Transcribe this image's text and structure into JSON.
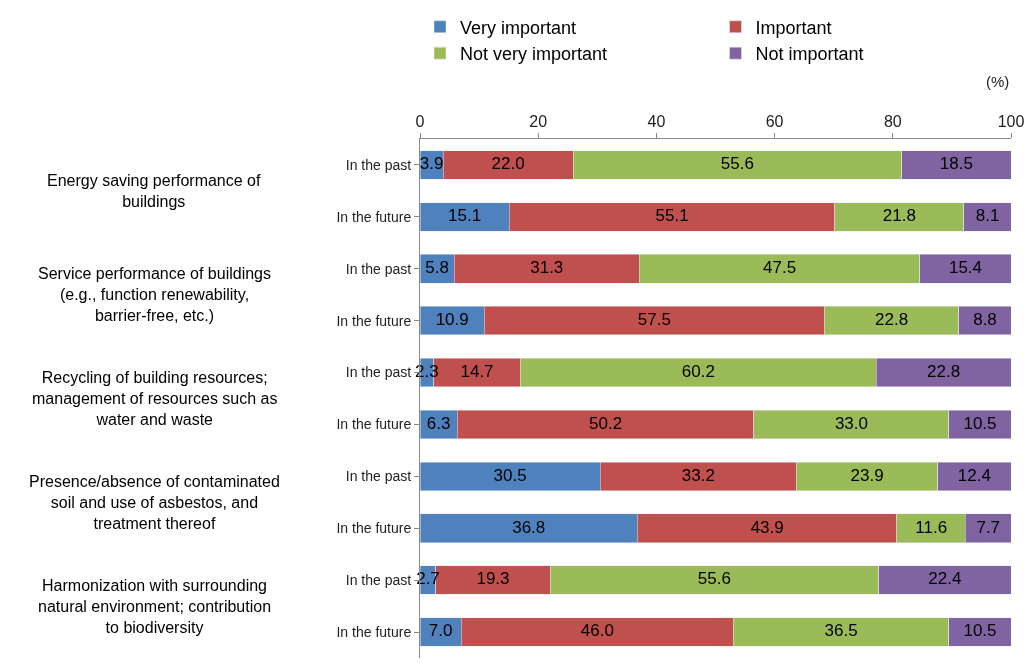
{
  "chart_data": {
    "type": "bar",
    "orientation": "horizontal",
    "stacked": true,
    "xlabel": "(%)",
    "categories": [
      "In the past",
      "In the future",
      "In the past",
      "In the future",
      "In the past",
      "In the future",
      "In the past",
      "In the future",
      "In the past",
      "In the future"
    ],
    "annotations": [
      "Energy saving performance of buildings",
      "Service performance of buildings (e.g., function renewability, barrier-free, etc.)",
      "Recycling of building resources; management of resources such as water and waste",
      "Presence/absence of contaminated soil and use of asbestos, and treatment thereof",
      "Harmonization with surrounding natural environment; contribution to biodiversity"
    ],
    "series": [
      {
        "name": "Very important",
        "color": "#4f81bd",
        "values": [
          3.9,
          15.1,
          5.8,
          10.9,
          2.3,
          6.3,
          30.5,
          36.8,
          2.7,
          7.0
        ],
        "value_labels": [
          "3.9",
          "15.1",
          "5.8",
          "10.9",
          "2.3",
          "6.3",
          "30.5",
          "36.8",
          "2.7",
          "7.0"
        ]
      },
      {
        "name": "Important",
        "color": "#c0504d",
        "values": [
          22.0,
          55.1,
          31.3,
          57.5,
          14.7,
          50.2,
          33.2,
          43.9,
          19.3,
          46.0
        ],
        "value_labels": [
          "22.0",
          "55.1",
          "31.3",
          "57.5",
          "14.7",
          "50.2",
          "33.2",
          "43.9",
          "19.3",
          "46.0"
        ]
      },
      {
        "name": "Not very important",
        "color": "#9bbb59",
        "values": [
          55.6,
          21.8,
          47.5,
          22.8,
          60.2,
          33.0,
          23.9,
          11.6,
          55.6,
          36.5
        ],
        "value_labels": [
          "55.6",
          "21.8",
          "47.5",
          "22.8",
          "60.2",
          "33.0",
          "23.9",
          "11.6",
          "55.6",
          "36.5"
        ]
      },
      {
        "name": "Not important",
        "color": "#8064a2",
        "values": [
          18.5,
          8.1,
          15.4,
          8.8,
          22.8,
          10.5,
          12.4,
          7.7,
          22.4,
          10.5
        ],
        "value_labels": [
          "18.5",
          "8.1",
          "15.4",
          "8.8",
          "22.8",
          "10.5",
          "12.4",
          "7.7",
          "22.4",
          "10.5"
        ]
      }
    ],
    "xlim": [
      0,
      100
    ],
    "xticks": [
      0,
      20,
      40,
      60,
      80,
      100
    ],
    "legend": "top"
  }
}
